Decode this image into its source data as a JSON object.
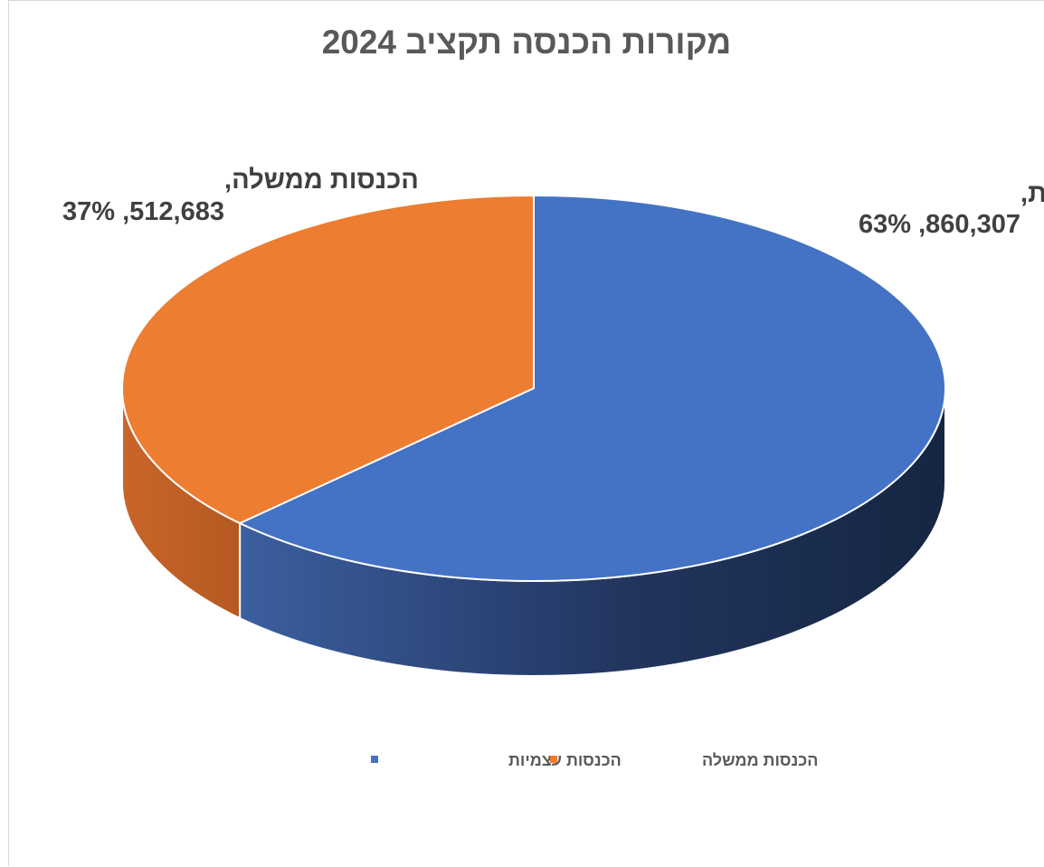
{
  "chart_data": {
    "type": "pie",
    "title": "מקורות הכנסה תקציב 2024",
    "slices": [
      {
        "label": "הכנסות עצמיות",
        "value": 860307,
        "percent": 63,
        "color": "#4472C4",
        "value_text": "860,307",
        "percent_text": "63%"
      },
      {
        "label": "הכנסות ממשלה",
        "value": 512683,
        "percent": 37,
        "color": "#ED7D31",
        "value_text": "512,683",
        "percent_text": "37%"
      }
    ],
    "three_d": true,
    "legend": {
      "position": "bottom",
      "entries": [
        "הכנסות עצמיות",
        "הכנסות ממשלה"
      ]
    }
  }
}
